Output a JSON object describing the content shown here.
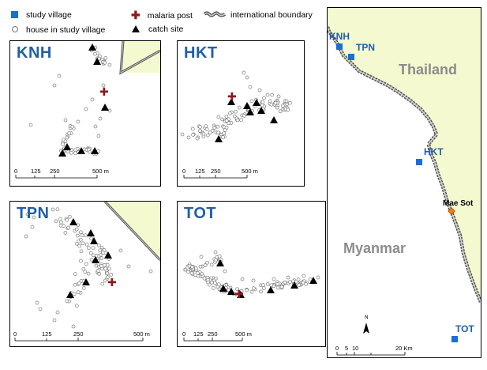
{
  "legend": {
    "study_village": "study village",
    "house": "house in study village",
    "malaria_post": "malaria post",
    "catch_site": "catch site",
    "boundary": "international boundary"
  },
  "colors": {
    "village_blue": "#1a6fd6",
    "label_blue": "#1f5fa8",
    "thailand_fill": "#f4f9cf",
    "malaria_post": "#8b1a1a",
    "town": "#ff7f00",
    "country_gray": "#8c8c8c"
  },
  "panels": {
    "knh": {
      "title": "KNH",
      "scale": [
        "0",
        "125",
        "250",
        "500 m"
      ]
    },
    "hkt": {
      "title": "HKT",
      "scale": [
        "0",
        "125",
        "250",
        "500 m"
      ]
    },
    "tpn": {
      "title": "TPN",
      "scale": [
        "0",
        "125",
        "250",
        "500 m"
      ]
    },
    "tot": {
      "title": "TOT",
      "scale": [
        "0",
        "125",
        "250",
        "500 m"
      ]
    }
  },
  "overview": {
    "thailand": "Thailand",
    "myanmar": "Myanmar",
    "town": "Mae Sot",
    "villages": [
      "KNH",
      "TPN",
      "HKT",
      "TOT"
    ],
    "north": "N",
    "scale": [
      "0",
      "5",
      "10",
      "20 Km"
    ]
  }
}
